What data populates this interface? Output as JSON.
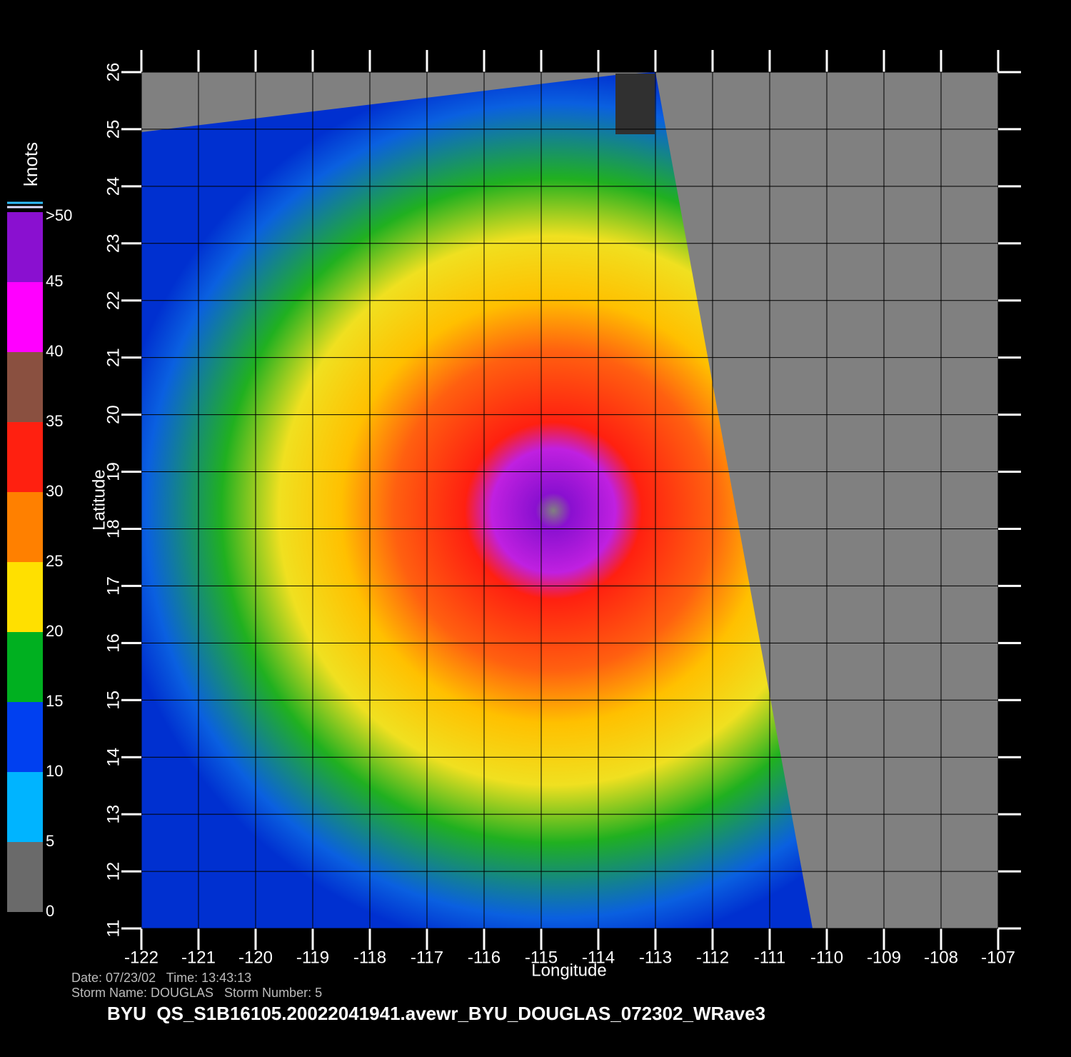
{
  "map": {
    "xlabel": "Longitude",
    "ylabel": "Latitude",
    "xlim": [
      -122,
      -107
    ],
    "ylim": [
      11,
      26
    ],
    "xticks": [
      -122,
      -121,
      -120,
      -119,
      -118,
      -117,
      -116,
      -115,
      -114,
      -113,
      -112,
      -111,
      -110,
      -109,
      -108,
      -107
    ],
    "yticks": [
      11,
      12,
      13,
      14,
      15,
      16,
      17,
      18,
      19,
      20,
      21,
      22,
      23,
      24,
      25,
      26
    ]
  },
  "colorbar": {
    "label": "knots",
    "lim": [
      0,
      50
    ],
    "ticks": [
      0,
      5,
      10,
      15,
      20,
      25,
      30,
      35,
      40,
      45,
      {
        "value": 50,
        "label": ">50"
      }
    ],
    "colors": [
      "#6a6a6a",
      "#00b4ff",
      "#0040f0",
      "#00b020",
      "#ffe000",
      "#ff8000",
      "#ff2010",
      "#8a5040",
      "#ff00ff",
      "#8a10d0"
    ]
  },
  "footer": {
    "date_line": "Date: 07/23/02   Time: 13:43:13",
    "storm_line": "Storm Name: DOUGLAS   Storm Number: 5",
    "title": "BYU  QS_S1B16105.20022041941.avewr_BYU_DOUGLAS_072302_WRave3"
  }
}
